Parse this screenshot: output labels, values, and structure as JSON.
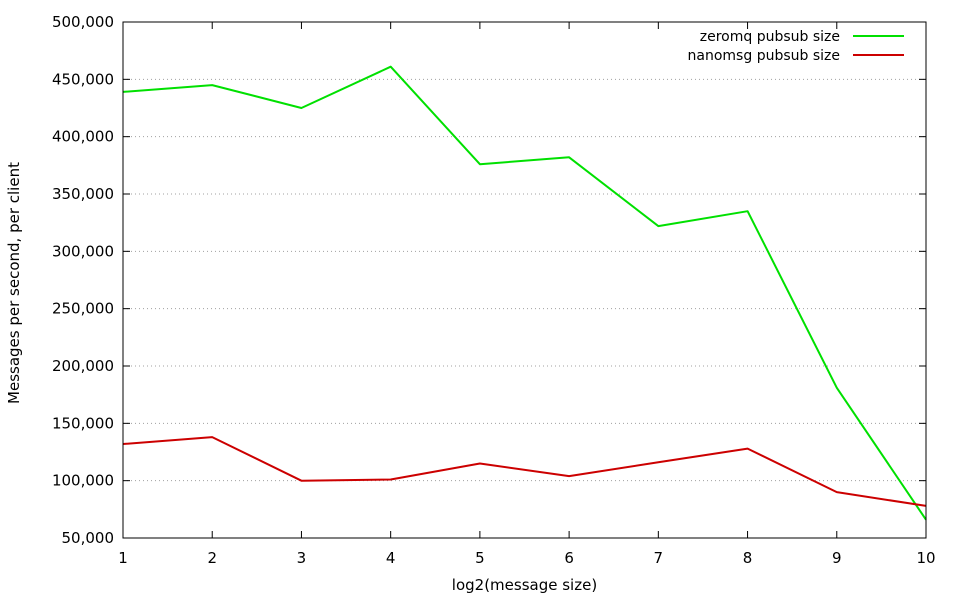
{
  "chart_data": {
    "type": "line",
    "title": "",
    "xlabel": "log2(message size)",
    "ylabel": "Messages per second, per client",
    "x": [
      1,
      2,
      3,
      4,
      5,
      6,
      7,
      8,
      9,
      10
    ],
    "xlim": [
      1,
      10
    ],
    "ylim": [
      50000,
      500000
    ],
    "yticks": [
      50000,
      100000,
      150000,
      200000,
      250000,
      300000,
      350000,
      400000,
      450000,
      500000
    ],
    "ytick_labels": [
      "50,000",
      "100,000",
      "150,000",
      "200,000",
      "250,000",
      "300,000",
      "350,000",
      "400,000",
      "450,000",
      "500,000"
    ],
    "xticks": [
      1,
      2,
      3,
      4,
      5,
      6,
      7,
      8,
      9,
      10
    ],
    "xtick_labels": [
      "1",
      "2",
      "3",
      "4",
      "5",
      "6",
      "7",
      "8",
      "9",
      "10"
    ],
    "grid": "horizontal dotted",
    "legend_position": "top-right",
    "series": [
      {
        "name": "zeromq pubsub size",
        "color": "#00e000",
        "values": [
          439000,
          445000,
          425000,
          461000,
          376000,
          382000,
          322000,
          335000,
          181000,
          66000
        ]
      },
      {
        "name": "nanomsg pubsub size",
        "color": "#cc0000",
        "values": [
          132000,
          138000,
          100000,
          101000,
          115000,
          104000,
          116000,
          128000,
          90000,
          78000
        ]
      }
    ]
  }
}
